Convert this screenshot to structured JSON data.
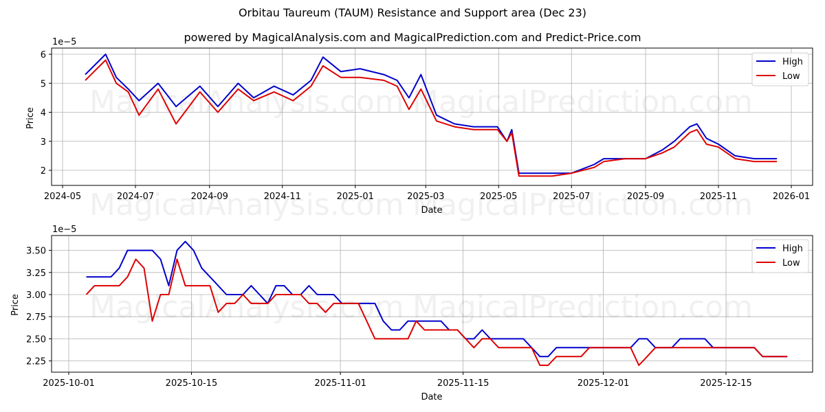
{
  "header": {
    "title": "Orbitau Taureum (TAUM) Resistance and Support area (Dec 23)",
    "subtitle": "powered by MagicalAnalysis.com and MagicalPrediction.com and Predict-Price.com"
  },
  "watermarks": [
    "MagicalAnalysis.com",
    "MagicalPrediction.com"
  ],
  "colors": {
    "high": "#0000cc",
    "low": "#dd0000",
    "grid": "#b0b0b0"
  },
  "legend": {
    "high_label": "High",
    "low_label": "Low"
  },
  "chart_data": [
    {
      "type": "line",
      "title": "",
      "xlabel": "Date",
      "ylabel": "Price",
      "y_multiplier": "1e−5",
      "ylim": [
        1.5,
        6.2
      ],
      "yticks": [
        "2",
        "3",
        "4",
        "5",
        "6"
      ],
      "xticks": [
        "2024-05",
        "2024-07",
        "2024-09",
        "2024-11",
        "2025-01",
        "2025-03",
        "2025-05",
        "2025-07",
        "2025-09",
        "2025-11",
        "2026-01"
      ],
      "grid": true,
      "legend_position": "upper right",
      "x": [
        "2024-05-20",
        "2024-06-06",
        "2024-06-15",
        "2024-06-25",
        "2024-07-04",
        "2024-07-20",
        "2024-08-04",
        "2024-08-24",
        "2024-09-08",
        "2024-09-25",
        "2024-10-08",
        "2024-10-25",
        "2024-11-10",
        "2024-11-25",
        "2024-12-05",
        "2024-12-20",
        "2025-01-05",
        "2025-01-25",
        "2025-02-05",
        "2025-02-15",
        "2025-02-25",
        "2025-03-10",
        "2025-03-25",
        "2025-04-10",
        "2025-04-30",
        "2025-05-08",
        "2025-05-12",
        "2025-05-18",
        "2025-06-15",
        "2025-07-01",
        "2025-07-20",
        "2025-07-28",
        "2025-08-15",
        "2025-09-01",
        "2025-09-15",
        "2025-09-25",
        "2025-10-08",
        "2025-10-14",
        "2025-10-22",
        "2025-11-01",
        "2025-11-15",
        "2025-12-01",
        "2025-12-20"
      ],
      "series": [
        {
          "name": "High",
          "values": [
            5.3,
            6.0,
            5.2,
            4.8,
            4.4,
            5.0,
            4.2,
            4.9,
            4.2,
            5.0,
            4.5,
            4.9,
            4.6,
            5.1,
            5.9,
            5.4,
            5.5,
            5.3,
            5.1,
            4.5,
            5.3,
            3.9,
            3.6,
            3.5,
            3.5,
            3.0,
            3.4,
            1.9,
            1.9,
            1.9,
            2.2,
            2.4,
            2.4,
            2.4,
            2.7,
            3.0,
            3.5,
            3.6,
            3.1,
            2.9,
            2.5,
            2.4,
            2.4
          ]
        },
        {
          "name": "Low",
          "values": [
            5.1,
            5.8,
            5.0,
            4.7,
            3.9,
            4.8,
            3.6,
            4.7,
            4.0,
            4.8,
            4.4,
            4.7,
            4.4,
            4.9,
            5.6,
            5.2,
            5.2,
            5.1,
            4.9,
            4.1,
            4.8,
            3.7,
            3.5,
            3.4,
            3.4,
            3.0,
            3.3,
            1.8,
            1.8,
            1.9,
            2.1,
            2.3,
            2.4,
            2.4,
            2.6,
            2.8,
            3.3,
            3.4,
            2.9,
            2.8,
            2.4,
            2.3,
            2.3
          ]
        }
      ]
    },
    {
      "type": "line",
      "title": "",
      "xlabel": "Date",
      "ylabel": "Price",
      "y_multiplier": "1e−5",
      "ylim": [
        2.12,
        3.67
      ],
      "yticks": [
        "2.25",
        "2.50",
        "2.75",
        "3.00",
        "3.25",
        "3.50"
      ],
      "xticks": [
        "2025-10-01",
        "2025-10-15",
        "2025-11-01",
        "2025-11-15",
        "2025-12-01",
        "2025-12-15"
      ],
      "grid": true,
      "legend_position": "upper right",
      "x_start": "2025-10-03",
      "x_end": "2025-12-22",
      "series": [
        {
          "name": "High",
          "values": [
            3.2,
            3.2,
            3.2,
            3.2,
            3.3,
            3.5,
            3.5,
            3.5,
            3.5,
            3.4,
            3.1,
            3.5,
            3.6,
            3.5,
            3.3,
            3.2,
            3.1,
            3.0,
            3.0,
            3.0,
            3.1,
            3.0,
            2.9,
            3.1,
            3.1,
            3.0,
            3.0,
            3.1,
            3.0,
            3.0,
            3.0,
            2.9,
            2.9,
            2.9,
            2.9,
            2.9,
            2.7,
            2.6,
            2.6,
            2.7,
            2.7,
            2.7,
            2.7,
            2.7,
            2.6,
            2.6,
            2.5,
            2.5,
            2.6,
            2.5,
            2.5,
            2.5,
            2.5,
            2.5,
            2.4,
            2.3,
            2.3,
            2.4,
            2.4,
            2.4,
            2.4,
            2.4,
            2.4,
            2.4,
            2.4,
            2.4,
            2.4,
            2.5,
            2.5,
            2.4,
            2.4,
            2.4,
            2.5,
            2.5,
            2.5,
            2.5,
            2.4,
            2.4,
            2.4,
            2.4,
            2.4,
            2.4,
            2.3,
            2.3,
            2.3,
            2.3
          ]
        },
        {
          "name": "Low",
          "values": [
            3.0,
            3.1,
            3.1,
            3.1,
            3.1,
            3.2,
            3.4,
            3.3,
            2.7,
            3.0,
            3.0,
            3.4,
            3.1,
            3.1,
            3.1,
            3.1,
            2.8,
            2.9,
            2.9,
            3.0,
            2.9,
            2.9,
            2.9,
            3.0,
            3.0,
            3.0,
            3.0,
            2.9,
            2.9,
            2.8,
            2.9,
            2.9,
            2.9,
            2.9,
            2.7,
            2.5,
            2.5,
            2.5,
            2.5,
            2.5,
            2.7,
            2.6,
            2.6,
            2.6,
            2.6,
            2.6,
            2.5,
            2.4,
            2.5,
            2.5,
            2.4,
            2.4,
            2.4,
            2.4,
            2.4,
            2.2,
            2.2,
            2.3,
            2.3,
            2.3,
            2.3,
            2.4,
            2.4,
            2.4,
            2.4,
            2.4,
            2.4,
            2.2,
            2.3,
            2.4,
            2.4,
            2.4,
            2.4,
            2.4,
            2.4,
            2.4,
            2.4,
            2.4,
            2.4,
            2.4,
            2.4,
            2.4,
            2.3,
            2.3,
            2.3,
            2.3
          ]
        }
      ]
    }
  ]
}
